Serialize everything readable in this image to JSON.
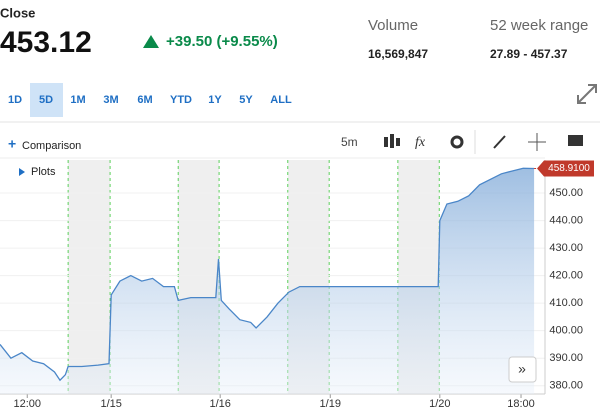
{
  "header": {
    "label": "Close",
    "price": "453.12",
    "change": "+39.50 (+9.55%)",
    "stats": [
      {
        "label": "Volume",
        "value": "16,569,847"
      },
      {
        "label": "52 week range",
        "value": "27.89 - 457.37"
      }
    ]
  },
  "ranges": [
    "1D",
    "5D",
    "1M",
    "3M",
    "6M",
    "YTD",
    "1Y",
    "5Y",
    "ALL"
  ],
  "toolbar": {
    "comparison": "Comparison",
    "interval": "5m",
    "plots": "Plots"
  },
  "chart_data": {
    "type": "line",
    "color": "#4a86c8",
    "grid": true,
    "x": [
      0,
      2,
      4,
      6,
      8,
      10,
      11,
      12,
      12.5,
      15,
      18,
      20,
      20.4,
      22,
      24,
      26,
      28,
      30,
      32,
      32.7,
      35,
      38,
      39.6,
      40.1,
      40.6,
      42,
      44,
      46,
      47,
      49,
      51,
      53,
      55,
      57,
      60.4,
      65,
      70,
      75,
      80.4,
      80.7,
      82,
      84,
      86,
      88,
      90,
      92,
      94,
      96,
      98
    ],
    "values": [
      395,
      390,
      392,
      389,
      388,
      385,
      382,
      384,
      387,
      387,
      387.5,
      388,
      413,
      418,
      420,
      418,
      419,
      416,
      416,
      411,
      412,
      412,
      412,
      426,
      411,
      408,
      404,
      403,
      401,
      405,
      410,
      414,
      416,
      416,
      416,
      416,
      416,
      416,
      416,
      440,
      446,
      447,
      449,
      453,
      455,
      457,
      458,
      459,
      458.91
    ],
    "closed_periods": [
      [
        12.5,
        20.2
      ],
      [
        32.7,
        40.2
      ],
      [
        52.8,
        60.4
      ],
      [
        73,
        80.6
      ]
    ],
    "xlim": [
      0,
      100
    ],
    "xticks": [
      {
        "value": 5,
        "label": "12:00"
      },
      {
        "value": 20.4,
        "label": "1/15"
      },
      {
        "value": 40.4,
        "label": "1/16"
      },
      {
        "value": 60.6,
        "label": "1/19"
      },
      {
        "value": 80.7,
        "label": "1/20"
      },
      {
        "value": 95.6,
        "label": "18:00"
      }
    ],
    "ylim": [
      377,
      462
    ],
    "yticks": [
      {
        "value": 380,
        "label": "380.00"
      },
      {
        "value": 390,
        "label": "390.00"
      },
      {
        "value": 400,
        "label": "400.00"
      },
      {
        "value": 410,
        "label": "410.00"
      },
      {
        "value": 420,
        "label": "420.00"
      },
      {
        "value": 430,
        "label": "430.00"
      },
      {
        "value": 440,
        "label": "440.00"
      },
      {
        "value": 450,
        "label": "450.00"
      }
    ],
    "current_price": {
      "value": 458.91,
      "label": "458.9100"
    }
  }
}
